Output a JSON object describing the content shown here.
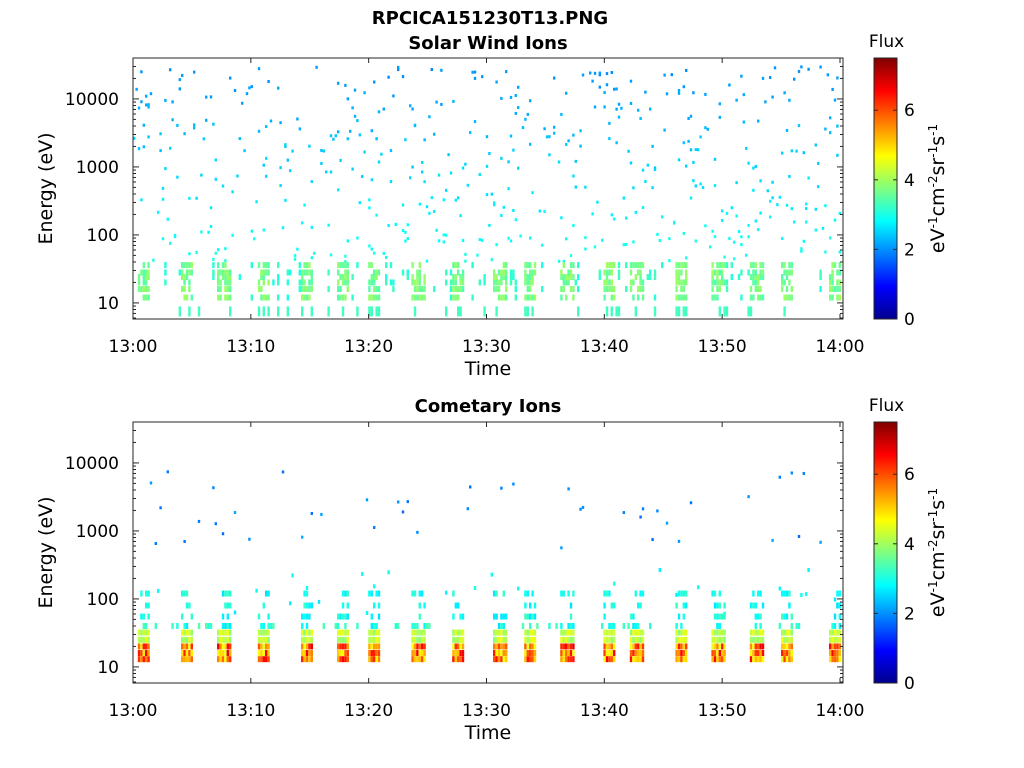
{
  "figure_title": "RPCICA151230T13.PNG",
  "chart_data": [
    {
      "type": "heatmap",
      "title": "Solar Wind Ions",
      "xlabel": "Time",
      "ylabel": "Energy (eV)",
      "y_scale": "log",
      "x_ticks": [
        "13:00",
        "13:10",
        "13:20",
        "13:30",
        "13:40",
        "13:50",
        "14:00"
      ],
      "y_ticks": [
        "10",
        "100",
        "1000",
        "10000"
      ],
      "ylim": [
        5.8,
        40000
      ],
      "colorbar": {
        "title": "Flux",
        "label": "eV-1cm-2sr-1s-1",
        "ticks": [
          "0",
          "2",
          "4",
          "6"
        ],
        "range": [
          0,
          7.5
        ],
        "colormap": "jet"
      },
      "grid": false,
      "description_values": {
        "background_flux_range": [
          2,
          2.8
        ],
        "low_energy_band_eV": [
          10,
          40
        ],
        "low_energy_band_flux": [
          3.2,
          3.8
        ]
      },
      "pulse_minutes": [
        0.8,
        4.5,
        7.6,
        11,
        14.6,
        17.6,
        20.3,
        24.0,
        27.4,
        30.9,
        33.5,
        36.6,
        40.2,
        42.5,
        46.2,
        49.4,
        52.6,
        55.2,
        59.2
      ]
    },
    {
      "type": "heatmap",
      "title": "Cometary Ions",
      "xlabel": "Time",
      "ylabel": "Energy (eV)",
      "y_scale": "log",
      "x_ticks": [
        "13:00",
        "13:10",
        "13:20",
        "13:30",
        "13:40",
        "13:50",
        "14:00"
      ],
      "y_ticks": [
        "10",
        "100",
        "1000",
        "10000"
      ],
      "ylim": [
        5.8,
        40000
      ],
      "colorbar": {
        "title": "Flux",
        "label": "eV-1cm-2sr-1s-1",
        "ticks": [
          "0",
          "2",
          "4",
          "6"
        ],
        "range": [
          0,
          7.5
        ],
        "colormap": "jet"
      },
      "grid": false,
      "description_values": {
        "low_energy_band_eV": [
          12,
          40
        ],
        "peak_flux": 6.6,
        "sparse_high_energy_flux": [
          1.5,
          2.5
        ]
      },
      "pulse_minutes": [
        0.8,
        4.5,
        7.6,
        11,
        14.6,
        17.6,
        20.3,
        24.0,
        27.4,
        30.9,
        33.5,
        36.6,
        40.2,
        42.5,
        46.2,
        49.4,
        52.6,
        55.2,
        59.2
      ]
    }
  ]
}
